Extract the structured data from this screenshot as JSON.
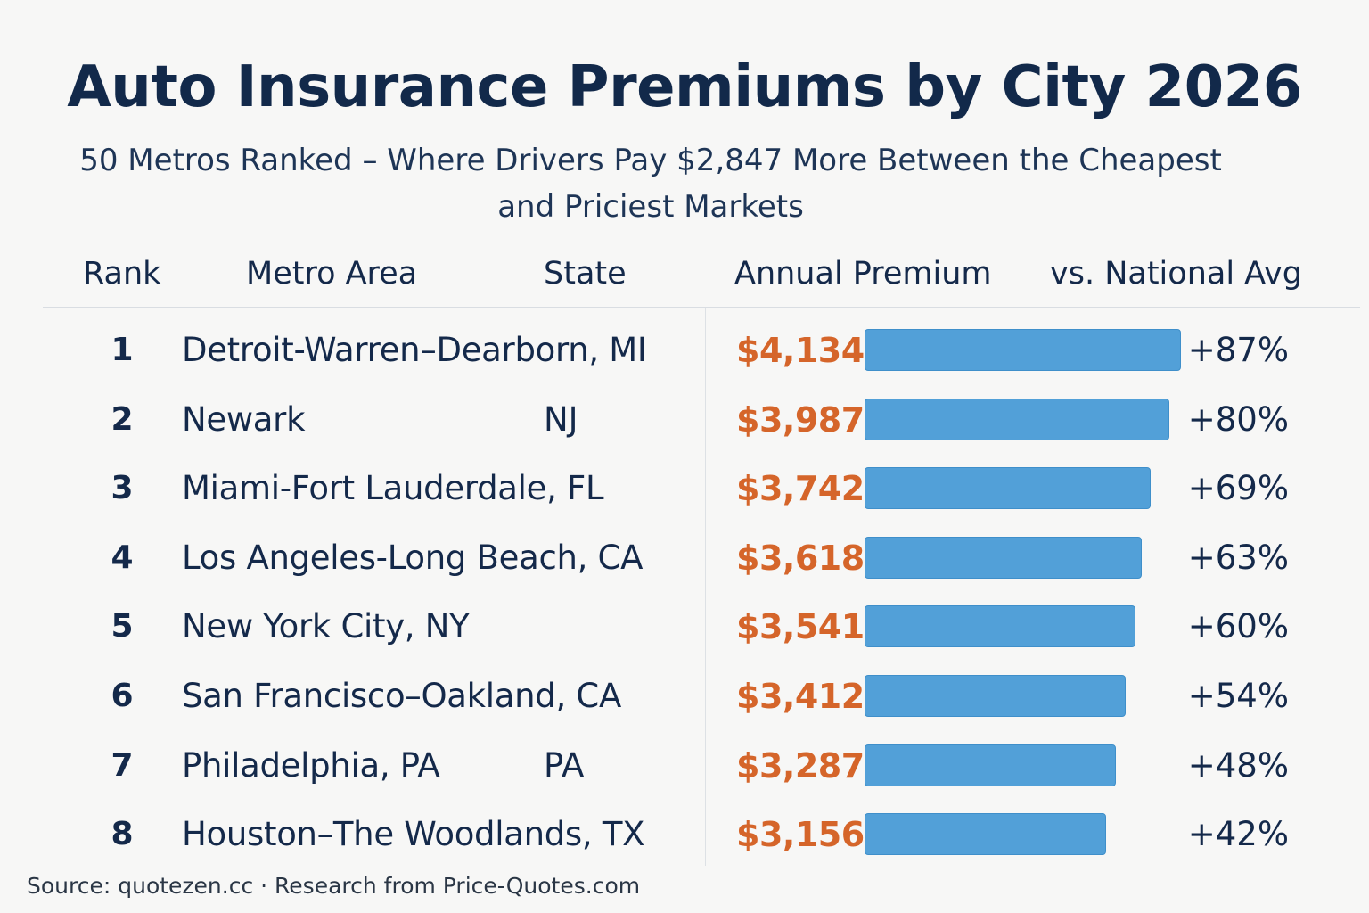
{
  "title": "Auto Insurance Premiums by City 2026",
  "subtitle": "50 Metros Ranked – Where Drivers Pay $2,847 More Between the Cheapest and Priciest Markets",
  "headers": {
    "rank": "Rank",
    "metro": "Metro Area",
    "state": "State",
    "premium": "Annual Premium",
    "vs": "vs. National Avg"
  },
  "colors": {
    "title": "#12294a",
    "premium_text": "#d5652a",
    "bar": "#52a0d8",
    "background": "#f7f7f6"
  },
  "chart_data": {
    "type": "table",
    "title": "Auto Insurance Premiums by City 2026",
    "columns": [
      "Rank",
      "Metro Area",
      "State",
      "Annual Premium",
      "vs. National Avg"
    ],
    "bar_series": "Annual Premium",
    "bar_scale_max": 4134,
    "rows": [
      {
        "rank": "1",
        "metro": "Detroit-Warren–Dearborn, MI",
        "state": "",
        "premium_label": "$4,134",
        "premium": 4134,
        "vs": "+87%"
      },
      {
        "rank": "2",
        "metro": "Newark",
        "state": "NJ",
        "premium_label": "$3,987",
        "premium": 3987,
        "vs": "+80%"
      },
      {
        "rank": "3",
        "metro": "Miami-Fort Lauderdale, FL",
        "state": "",
        "premium_label": "$3,742",
        "premium": 3742,
        "vs": "+69%"
      },
      {
        "rank": "4",
        "metro": "Los Angeles-Long Beach, CA",
        "state": "",
        "premium_label": "$3,618",
        "premium": 3618,
        "vs": "+63%"
      },
      {
        "rank": "5",
        "metro": "New York City, NY",
        "state": "",
        "premium_label": "$3,541",
        "premium": 3541,
        "vs": "+60%"
      },
      {
        "rank": "6",
        "metro": "San Francisco–Oakland, CA",
        "state": "",
        "premium_label": "$3,412",
        "premium": 3412,
        "vs": "+54%"
      },
      {
        "rank": "7",
        "metro": "Philadelphia, PA",
        "state": "PA",
        "premium_label": "$3,287",
        "premium": 3287,
        "vs": "+48%"
      },
      {
        "rank": "8",
        "metro": "Houston–The Woodlands, TX",
        "state": "",
        "premium_label": "$3,156",
        "premium": 3156,
        "vs": "+42%"
      }
    ]
  },
  "source": "Source: quotezen.cc · Research from Price-Quotes.com"
}
